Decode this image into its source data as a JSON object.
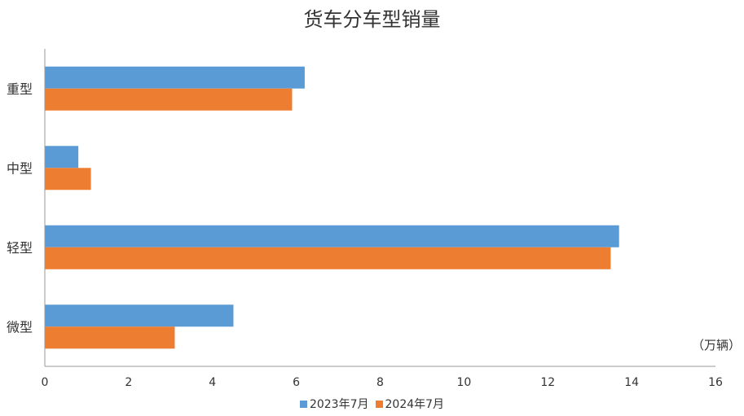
{
  "chart_data": {
    "type": "bar",
    "orientation": "horizontal",
    "title": "货车分车型销量",
    "unit_label": "（万辆）",
    "categories": [
      "重型",
      "中型",
      "轻型",
      "微型"
    ],
    "series": [
      {
        "name": "2023年7月",
        "color": "#5B9BD5",
        "values": [
          6.2,
          0.8,
          13.7,
          4.5
        ]
      },
      {
        "name": "2024年7月",
        "color": "#ED7D31",
        "values": [
          5.9,
          1.1,
          13.5,
          3.1
        ]
      }
    ],
    "xlim": [
      0,
      16
    ],
    "xticks": [
      "0",
      "2",
      "4",
      "6",
      "8",
      "10",
      "12",
      "14",
      "16"
    ],
    "grid": false,
    "legend_position": "bottom"
  }
}
